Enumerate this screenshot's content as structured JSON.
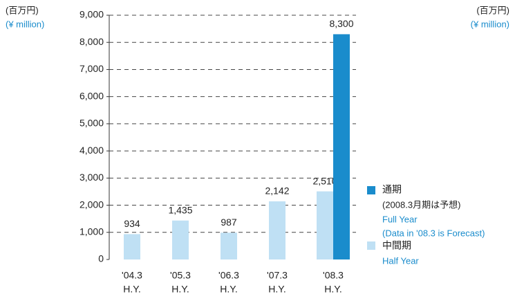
{
  "chart_data": {
    "type": "bar",
    "unit_label_left": [
      "(百万円)",
      "(¥ million)"
    ],
    "unit_label_right": [
      "(百万円)",
      "(¥ million)"
    ],
    "categories": [
      [
        "'04.3",
        "H.Y."
      ],
      [
        "'05.3",
        "H.Y."
      ],
      [
        "'06.3",
        "H.Y."
      ],
      [
        "'07.3",
        "H.Y."
      ],
      [
        "'08.3",
        "H.Y."
      ]
    ],
    "series": [
      {
        "name": "中間期",
        "name_en": "Half Year",
        "color": "#bfe0f4",
        "values": [
          934,
          1435,
          987,
          2142,
          2510
        ],
        "value_labels": [
          "934",
          "1,435",
          "987",
          "2,142",
          "2,510"
        ]
      },
      {
        "name": "通期",
        "note": "(2008.3月期は予想)",
        "name_en": "Full Year",
        "note_en": "(Data in '08.3 is Forecast)",
        "color": "#1a8ccc",
        "values": [
          null,
          null,
          null,
          null,
          8300
        ],
        "value_labels": [
          null,
          null,
          null,
          null,
          "8,300"
        ]
      }
    ],
    "ylim": [
      0,
      9000
    ],
    "yticks": [
      0,
      {
        "value": 1000,
        "label": "1,000"
      },
      {
        "value": 2000,
        "label": "2,000"
      },
      {
        "value": 3000,
        "label": "3,000"
      },
      {
        "value": 4000,
        "label": "4,000"
      },
      {
        "value": 5000,
        "label": "5,000"
      },
      {
        "value": 6000,
        "label": "6,000"
      },
      {
        "value": 7000,
        "label": "7,000"
      },
      {
        "value": 8000,
        "label": "8,000"
      },
      {
        "value": 9000,
        "label": "9,000"
      }
    ],
    "grid": true
  }
}
